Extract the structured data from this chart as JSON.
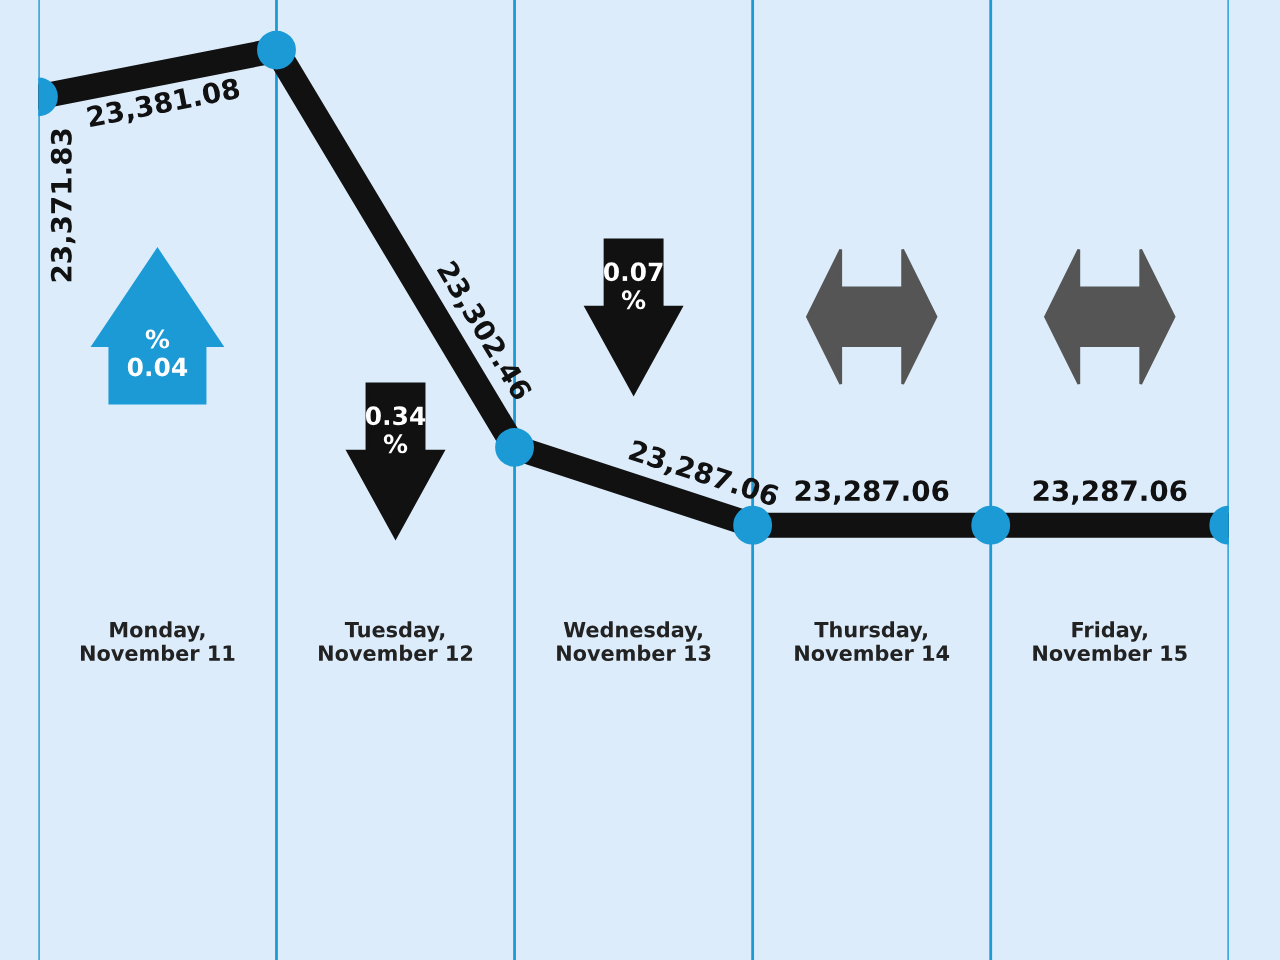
{
  "chart_data": {
    "type": "line",
    "categories": [
      null,
      null,
      null,
      null,
      null,
      null
    ],
    "values": [
      23371.83,
      23381.08,
      23302.46,
      23287.06,
      23287.06,
      23287.06
    ],
    "value_labels": [
      "23,371.83",
      "23,381.08",
      "23,302.46",
      "23,287.06",
      "23,287.06",
      "23,287.06"
    ],
    "color": "#111111",
    "marker": "circle",
    "ylim": [
      23201,
      23391
    ],
    "grid": "x",
    "annotations": [
      "Monday,\nNovember 11",
      "Tuesday,\nNovember 12",
      "Wednesday,\nNovember 13",
      "Thursday,\nNovember 14",
      "Friday,\nNovember 15",
      "%\n0.04",
      "0.34\n%",
      "0.07\n%"
    ]
  }
}
